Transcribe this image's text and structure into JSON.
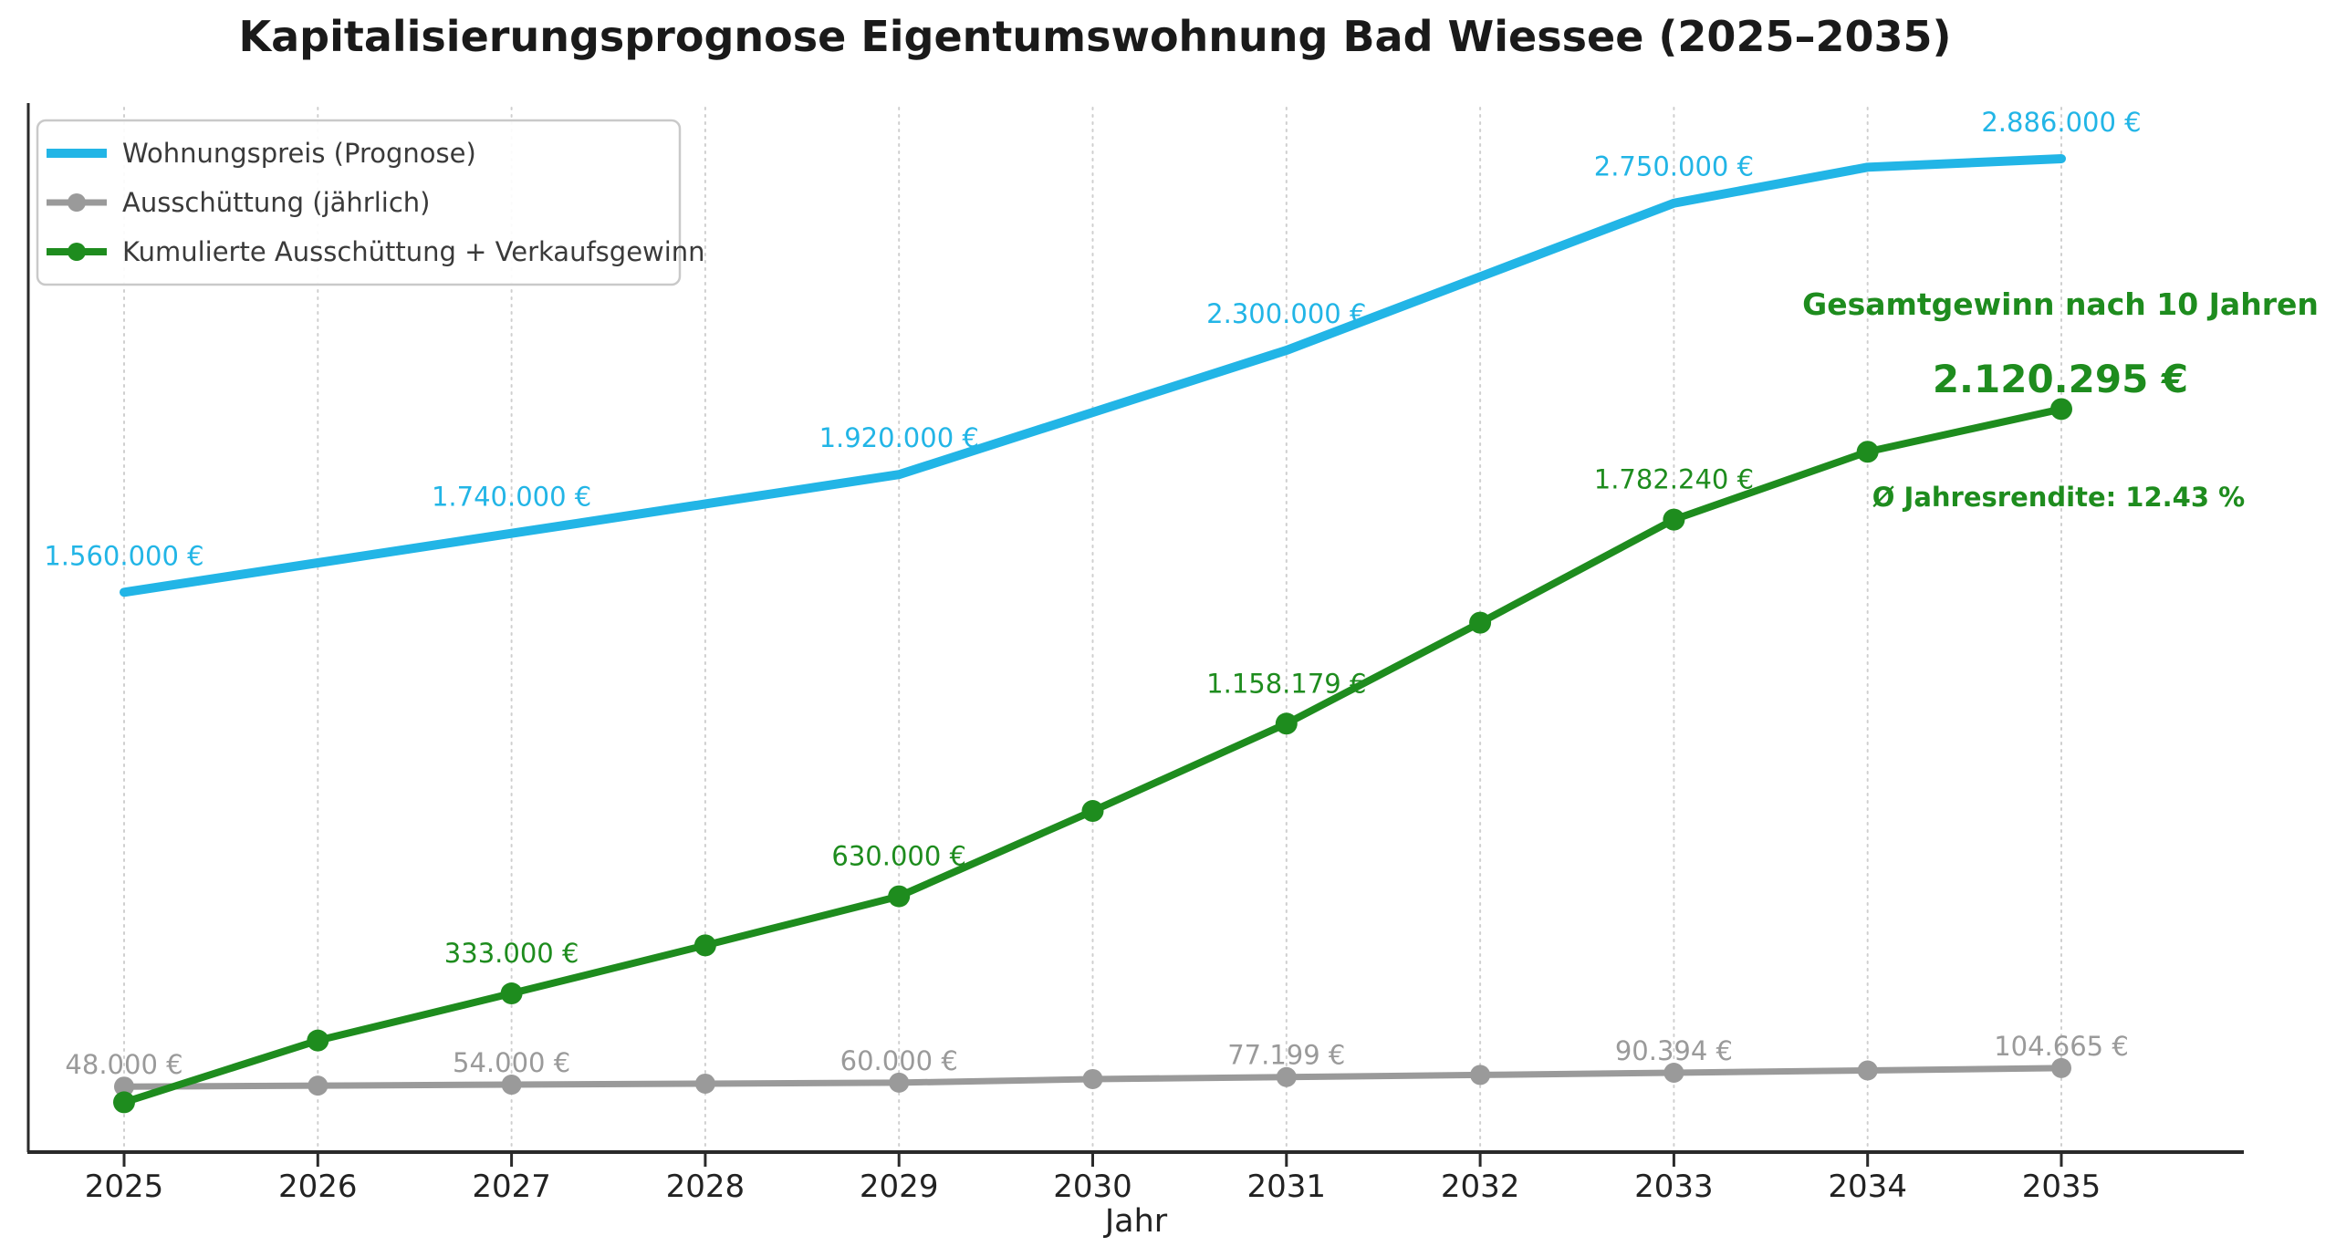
{
  "chart_data": {
    "type": "line",
    "title": "Kapitalisierungsprognose Eigentumswohnung Bad Wiessee (2025–2035)",
    "xlabel": "Jahr",
    "x": [
      2025,
      2026,
      2027,
      2028,
      2029,
      2030,
      2031,
      2032,
      2033,
      2034,
      2035
    ],
    "ylim": [
      0,
      3090000
    ],
    "grid": "vertical-dotted",
    "legend_position": "upper-left",
    "series": [
      {
        "name": "Wohnungspreis (Prognose)",
        "color": "#22b5e6",
        "marker": "none",
        "values": [
          1560000,
          1650000,
          1740000,
          1830000,
          1920000,
          2110000,
          2300000,
          2525000,
          2750000,
          2860000,
          2886000
        ],
        "point_labels": [
          {
            "year": 2025,
            "text": "1.560.000 €"
          },
          {
            "year": 2027,
            "text": "1.740.000 €"
          },
          {
            "year": 2029,
            "text": "1.920.000 €"
          },
          {
            "year": 2031,
            "text": "2.300.000 €"
          },
          {
            "year": 2033,
            "text": "2.750.000 €"
          },
          {
            "year": 2035,
            "text": "2.886.000 €"
          }
        ]
      },
      {
        "name": "Ausschüttung (jährlich)",
        "color": "#9a9a9a",
        "marker": "circle",
        "values": [
          48000,
          51000,
          54000,
          57000,
          60000,
          70980,
          77199,
          83667,
          90394,
          97390,
          104665
        ],
        "point_labels": [
          {
            "year": 2025,
            "text": "48.000 €"
          },
          {
            "year": 2027,
            "text": "54.000 €"
          },
          {
            "year": 2029,
            "text": "60.000 €"
          },
          {
            "year": 2031,
            "text": "77.199 €"
          },
          {
            "year": 2033,
            "text": "90.394 €"
          },
          {
            "year": 2035,
            "text": "104.665 €"
          }
        ]
      },
      {
        "name": "Kumulierte Ausschüttung + Verkaufsgewinn",
        "color": "#1e8c1e",
        "marker": "circle",
        "values": [
          0,
          189000,
          333000,
          480000,
          630000,
          890980,
          1158179,
          1466846,
          1782240,
          1989630,
          2120295
        ],
        "point_labels": [
          {
            "year": 2027,
            "text": "333.000 €"
          },
          {
            "year": 2029,
            "text": "630.000 €"
          },
          {
            "year": 2031,
            "text": "1.158.179 €"
          },
          {
            "year": 2033,
            "text": "1.782.240 €"
          }
        ]
      }
    ],
    "annotations": [
      {
        "text": "Gesamtgewinn nach 10 Jahren"
      },
      {
        "text": "2.120.295 €"
      },
      {
        "text": "Ø Jahresrendite: 12.43 %"
      }
    ]
  },
  "colors": {
    "price": "#22b5e6",
    "payout": "#9a9a9a",
    "cumulative": "#1e8c1e",
    "annotation": "#1e8c1e",
    "title": "#1a1a1a",
    "axis": "#2a2a2a",
    "tick_label": "#222222",
    "grid": "#cfcfcf",
    "legend_text": "#3a3a3a",
    "legend_border": "#c9c9c9",
    "background": "#ffffff"
  }
}
